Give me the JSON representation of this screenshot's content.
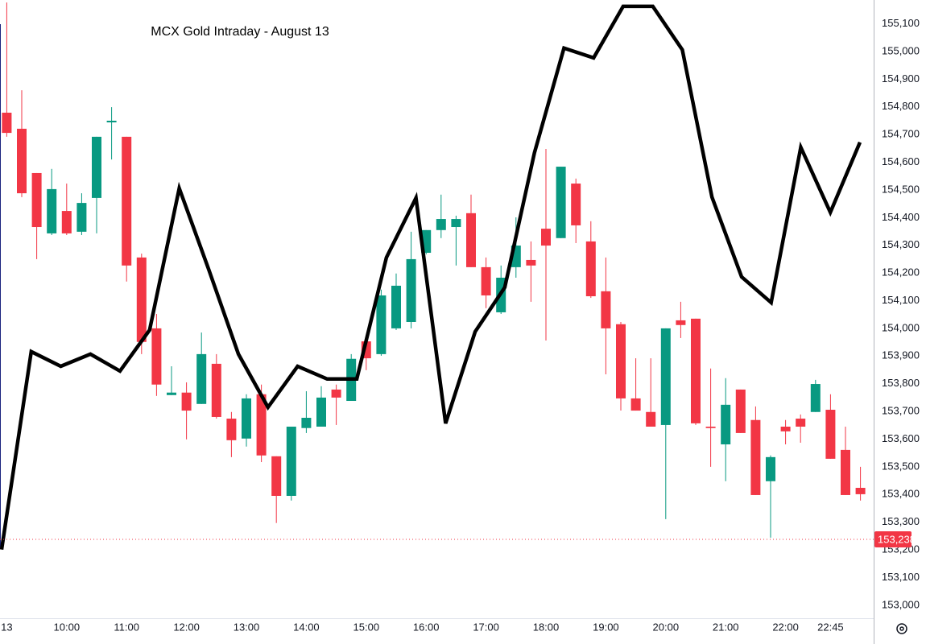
{
  "chart_data": {
    "type": "candlestick",
    "title": "MCX Gold Intraday - August 13",
    "categories": [
      "13",
      null,
      null,
      null,
      "10:00",
      null,
      null,
      null,
      "11:00",
      null,
      null,
      null,
      "12:00",
      null,
      null,
      null,
      "13:00",
      null,
      null,
      null,
      "14:00",
      null,
      null,
      null,
      "15:00",
      null,
      null,
      null,
      "16:00",
      null,
      null,
      null,
      "17:00",
      null,
      null,
      null,
      "18:00",
      null,
      null,
      null,
      "19:00",
      null,
      null,
      null,
      "20:00",
      null,
      null,
      null,
      "21:00",
      null,
      null,
      null,
      "22:00",
      null,
      null,
      "22:45",
      null,
      null
    ],
    "open": [
      154779,
      154721,
      154561,
      154343,
      154424,
      154349,
      154471,
      154744,
      154692,
      154256,
      154000,
      153759,
      153768,
      153727,
      153872,
      153674,
      153602,
      153762,
      153538,
      153395,
      153640,
      153645,
      153779,
      153738,
      153953,
      153907,
      154000,
      154023,
      154273,
      154355,
      154366,
      154416,
      154221,
      154058,
      154221,
      154247,
      154360,
      154326,
      154523,
      154314,
      154134,
      154015,
      153747,
      153698,
      153651,
      154029,
      154035,
      153645,
      153581,
      153779,
      153669,
      153448,
      153645,
      153674,
      153698,
      153706,
      153561,
      153424
    ],
    "high": [
      155177,
      154860,
      154561,
      154576,
      154523,
      154488,
      154692,
      154799,
      154692,
      154270,
      154052,
      153863,
      153805,
      153985,
      153907,
      153698,
      153762,
      153797,
      153538,
      153645,
      153773,
      153791,
      153797,
      153907,
      153965,
      154140,
      154198,
      154349,
      154355,
      154483,
      154407,
      154483,
      154256,
      154227,
      154401,
      154314,
      154648,
      154584,
      154541,
      154387,
      154256,
      154023,
      153892,
      153892,
      154000,
      154096,
      154035,
      153855,
      153820,
      153779,
      153718,
      153541,
      153669,
      153689,
      153814,
      153762,
      153645,
      153500
    ],
    "low": [
      154692,
      154474,
      154250,
      154337,
      154337,
      154337,
      154343,
      154610,
      154169,
      153907,
      153756,
      153759,
      153599,
      153727,
      153674,
      153535,
      153573,
      153517,
      153297,
      153378,
      153622,
      153645,
      153651,
      153738,
      153849,
      153901,
      153994,
      154000,
      154267,
      154326,
      154227,
      154221,
      154073,
      154052,
      154183,
      154096,
      153956,
      154326,
      154308,
      154110,
      153834,
      153703,
      153703,
      153645,
      153311,
      153965,
      153651,
      153500,
      153448,
      153622,
      153398,
      153244,
      153581,
      153587,
      153698,
      153529,
      153398,
      153378
    ],
    "close": [
      154706,
      154488,
      154366,
      154503,
      154343,
      154453,
      154692,
      154750,
      154227,
      153951,
      153797,
      153768,
      153703,
      153907,
      153680,
      153596,
      153747,
      153541,
      153395,
      153645,
      153677,
      153750,
      153750,
      153890,
      153892,
      154119,
      154154,
      154250,
      154355,
      154395,
      154395,
      154221,
      154119,
      154183,
      154299,
      154227,
      154299,
      154584,
      154372,
      154116,
      154000,
      153747,
      153703,
      153645,
      154000,
      154012,
      153657,
      153640,
      153724,
      153622,
      153398,
      153535,
      153628,
      153645,
      153799,
      153529,
      153398,
      153401
    ],
    "up_color": "#089981",
    "down_color": "#f23645",
    "line": {
      "color": "#000000",
      "values": [
        153201,
        153916,
        153863,
        153907,
        153846,
        153994,
        154506,
        154212,
        153907,
        153715,
        153863,
        153817,
        153817,
        154256,
        154471,
        153657,
        153988,
        154148,
        154634,
        155012,
        154977,
        155163,
        155163,
        155006,
        154474,
        154186,
        154093,
        154654,
        154419,
        154672
      ]
    },
    "last_price": {
      "value": 153238,
      "label": "153,238"
    },
    "ylim": [
      152953,
      155186
    ],
    "yticks": [
      {
        "value": 153000,
        "label": "153,000"
      },
      {
        "value": 153100,
        "label": "153,100"
      },
      {
        "value": 153200,
        "label": "153,200"
      },
      {
        "value": 153300,
        "label": "153,300"
      },
      {
        "value": 153400,
        "label": "153,400"
      },
      {
        "value": 153500,
        "label": "153,500"
      },
      {
        "value": 153600,
        "label": "153,600"
      },
      {
        "value": 153700,
        "label": "153,700"
      },
      {
        "value": 153800,
        "label": "153,800"
      },
      {
        "value": 153900,
        "label": "153,900"
      },
      {
        "value": 154000,
        "label": "154,000"
      },
      {
        "value": 154100,
        "label": "154,100"
      },
      {
        "value": 154200,
        "label": "154,200"
      },
      {
        "value": 154300,
        "label": "154,300"
      },
      {
        "value": 154400,
        "label": "154,400"
      },
      {
        "value": 154500,
        "label": "154,500"
      },
      {
        "value": 154600,
        "label": "154,600"
      },
      {
        "value": 154700,
        "label": "154,700"
      },
      {
        "value": 154800,
        "label": "154,800"
      },
      {
        "value": 154900,
        "label": "154,900"
      },
      {
        "value": 155000,
        "label": "155,000"
      },
      {
        "value": 155100,
        "label": "155,100"
      }
    ],
    "grid": false
  }
}
